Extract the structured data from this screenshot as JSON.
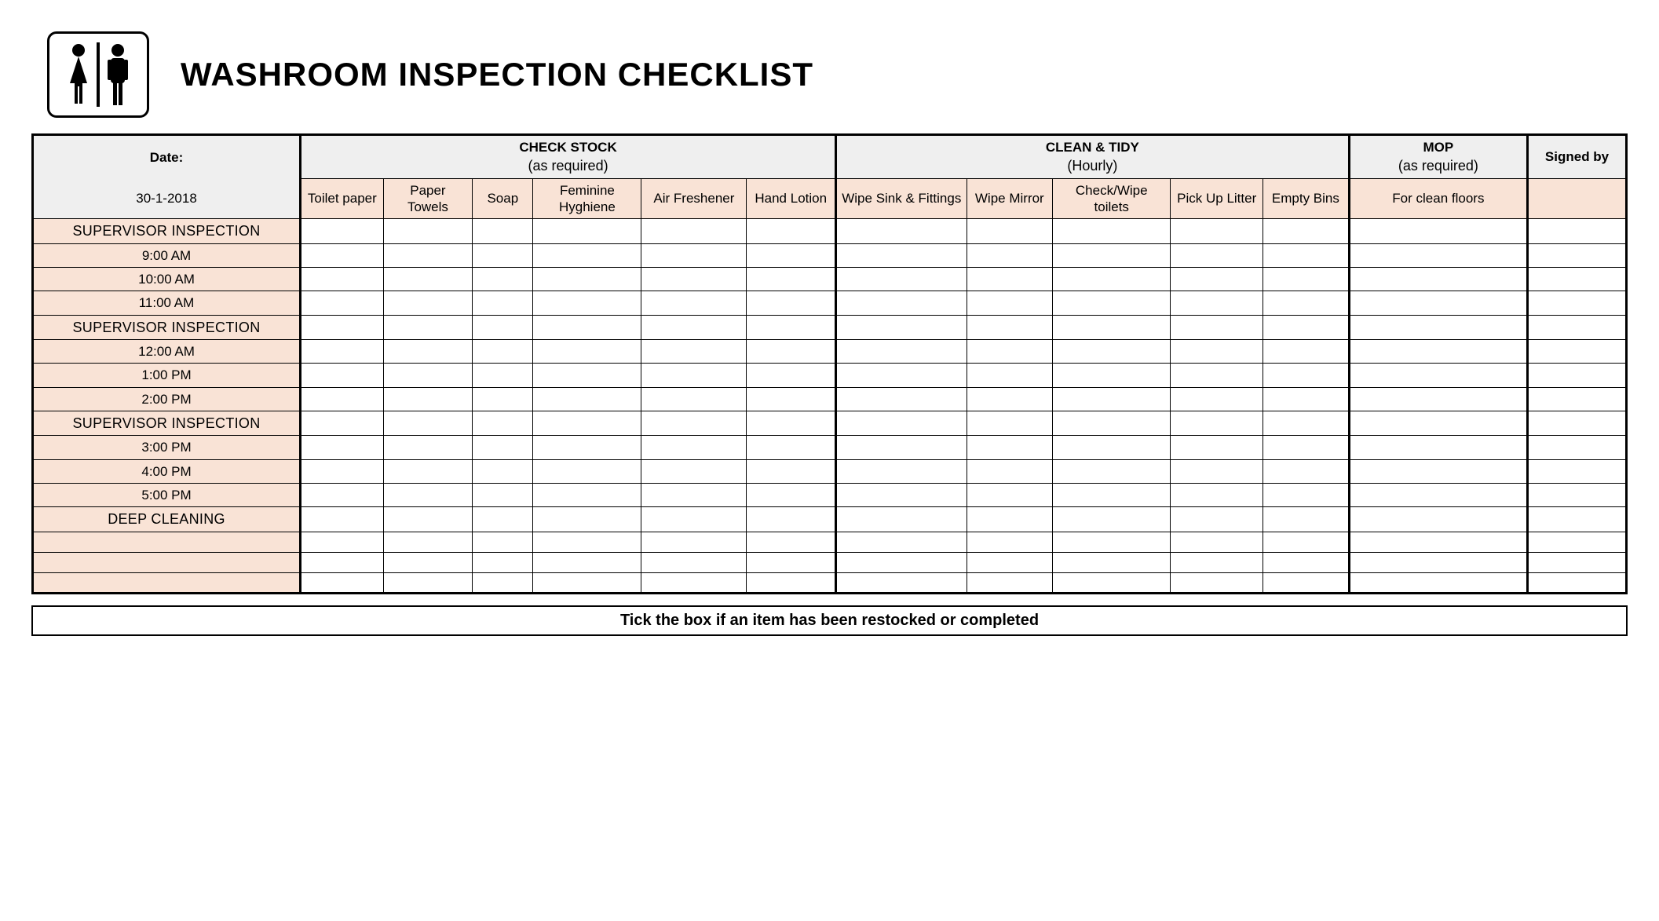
{
  "title": "WASHROOM INSPECTION CHECKLIST",
  "date_label": "Date:",
  "date_value": "30-1-2018",
  "groups": {
    "check_stock": {
      "label": "CHECK STOCK",
      "sub": "(as required)"
    },
    "clean_tidy": {
      "label": "CLEAN & TIDY",
      "sub": "(Hourly)"
    },
    "mop": {
      "label": "MOP",
      "sub": "(as required)"
    },
    "signed": {
      "label": "Signed by"
    }
  },
  "columns": {
    "check_stock": [
      "Toilet paper",
      "Paper Towels",
      "Soap",
      "Feminine Hyghiene",
      "Air Freshener",
      "Hand Lotion"
    ],
    "clean_tidy": [
      "Wipe Sink & Fittings",
      "Wipe Mirror",
      "Check/Wipe toilets",
      "Pick Up Litter",
      "Empty Bins"
    ],
    "mop": [
      "For clean floors"
    ],
    "signed": [
      ""
    ]
  },
  "rows": [
    {
      "label": "SUPERVISOR INSPECTION",
      "kind": "supervisor"
    },
    {
      "label": "9:00 AM",
      "kind": "time"
    },
    {
      "label": "10:00 AM",
      "kind": "time"
    },
    {
      "label": "11:00 AM",
      "kind": "time"
    },
    {
      "label": "SUPERVISOR INSPECTION",
      "kind": "supervisor"
    },
    {
      "label": "12:00 AM",
      "kind": "time"
    },
    {
      "label": "1:00 PM",
      "kind": "time"
    },
    {
      "label": "2:00 PM",
      "kind": "time"
    },
    {
      "label": "SUPERVISOR INSPECTION",
      "kind": "supervisor"
    },
    {
      "label": "3:00 PM",
      "kind": "time"
    },
    {
      "label": "4:00 PM",
      "kind": "time"
    },
    {
      "label": "5:00 PM",
      "kind": "time"
    },
    {
      "label": "DEEP CLEANING",
      "kind": "supervisor"
    },
    {
      "label": "",
      "kind": "blank"
    },
    {
      "label": "",
      "kind": "blank"
    },
    {
      "label": "",
      "kind": "blank"
    }
  ],
  "footer": "Tick the box if an item has been restocked or completed",
  "colors": {
    "peach": "#f9e3d6",
    "grey": "#efefef",
    "border": "#000000",
    "bg": "#ffffff"
  },
  "col_widths_pct": {
    "label": 16.8,
    "toilet_paper": 5.2,
    "paper_towels": 5.6,
    "soap": 3.8,
    "feminine": 6.8,
    "air": 6.6,
    "hand": 5.6,
    "wipe_sink": 8.2,
    "wipe_mirror": 5.4,
    "check_wipe": 7.4,
    "pick_up": 5.8,
    "empty_bins": 5.4,
    "mop": 11.2,
    "signed": 6.2
  }
}
